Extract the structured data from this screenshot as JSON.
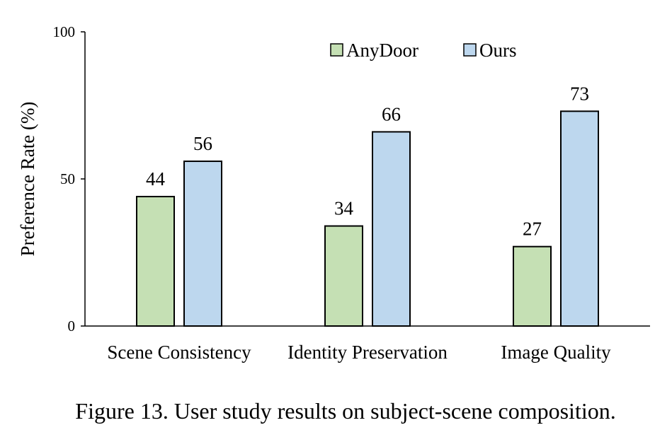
{
  "chart_data": {
    "type": "bar",
    "title": "",
    "xlabel": "",
    "ylabel": "Preference Rate (%)",
    "ylim": [
      0,
      100
    ],
    "yticks": [
      0,
      50,
      100
    ],
    "grid": false,
    "legend_position": "top-right",
    "categories": [
      "Scene Consistency",
      "Identity Preservation",
      "Image Quality"
    ],
    "series": [
      {
        "name": "AnyDoor",
        "color": "#c5e0b4",
        "values": [
          44,
          34,
          27
        ]
      },
      {
        "name": "Ours",
        "color": "#bdd7ee",
        "values": [
          56,
          66,
          73
        ]
      }
    ]
  },
  "caption": "Figure 13. User study results on subject-scene composition."
}
